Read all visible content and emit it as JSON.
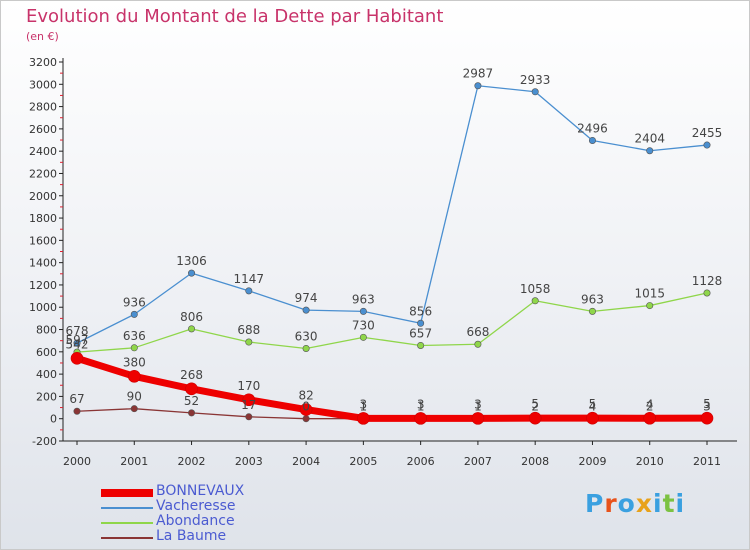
{
  "chart_data": {
    "type": "line",
    "title": "Evolution du Montant de la Dette par Habitant",
    "subtitle": "(en €)",
    "xlabel": "",
    "ylabel": "",
    "categories": [
      "2000",
      "2001",
      "2002",
      "2003",
      "2004",
      "2005",
      "2006",
      "2007",
      "2008",
      "2009",
      "2010",
      "2011"
    ],
    "ylim": [
      -200,
      3200
    ],
    "yticks": [
      -200,
      0,
      200,
      400,
      600,
      800,
      1000,
      1200,
      1400,
      1600,
      1800,
      2000,
      2200,
      2400,
      2600,
      2800,
      3000,
      3200
    ],
    "grid": false,
    "legend_position": "bottom-left",
    "series": [
      {
        "name": "BONNEVAUX",
        "color": "#ee0000",
        "values": [
          542,
          380,
          268,
          170,
          82,
          3,
          3,
          3,
          5,
          5,
          4,
          5
        ]
      },
      {
        "name": "Vacheresse",
        "color": "#4a8fd0",
        "values": [
          678,
          936,
          1306,
          1147,
          974,
          963,
          856,
          2987,
          2933,
          2496,
          2404,
          2455
        ]
      },
      {
        "name": "Abondance",
        "color": "#8fd64a",
        "values": [
          597,
          636,
          806,
          688,
          630,
          730,
          657,
          668,
          1058,
          963,
          1015,
          1128
        ]
      },
      {
        "name": "La Baume",
        "color": "#8a3535",
        "values": [
          67,
          90,
          52,
          17,
          0,
          1,
          1,
          1,
          2,
          4,
          2,
          3
        ]
      }
    ]
  },
  "brand": {
    "letters": [
      "P",
      "r",
      "o",
      "x",
      "i",
      "t",
      "i"
    ],
    "colors": [
      "#3aa0e0",
      "#e8521b",
      "#3aa0e0",
      "#e8a21b",
      "#3aa0e0",
      "#7cc242",
      "#3aa0e0"
    ]
  }
}
